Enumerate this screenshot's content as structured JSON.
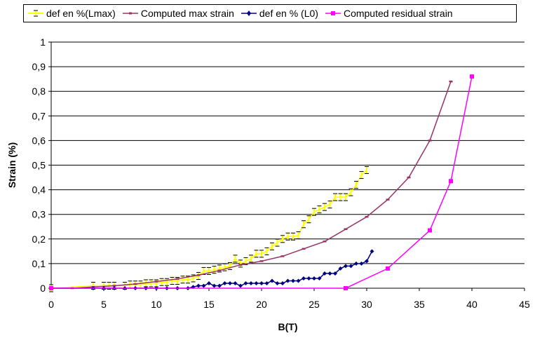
{
  "chart_data": {
    "type": "line",
    "xlabel": "B(T)",
    "ylabel": "Strain (%)",
    "xlim": [
      0,
      45
    ],
    "ylim": [
      0,
      1
    ],
    "x_ticks": [
      "0",
      "5",
      "10",
      "15",
      "20",
      "25",
      "30",
      "35",
      "40",
      "45"
    ],
    "y_ticks": [
      "0",
      "0,1",
      "0,2",
      "0,3",
      "0,4",
      "0,5",
      "0,6",
      "0,7",
      "0,8",
      "0,9",
      "1"
    ],
    "grid": "horizontal",
    "legend_position": "top",
    "series": [
      {
        "name": "def en %(Lmax)",
        "color": "#ffff00",
        "marker": "error-bar",
        "points": [
          [
            0,
            0
          ],
          [
            4,
            0.01
          ],
          [
            5,
            0.01
          ],
          [
            5.5,
            0.01
          ],
          [
            6,
            0.01
          ],
          [
            7,
            0.01
          ],
          [
            7.5,
            0.015
          ],
          [
            8,
            0.015
          ],
          [
            8.5,
            0.015
          ],
          [
            9,
            0.02
          ],
          [
            9.5,
            0.02
          ],
          [
            10,
            0.02
          ],
          [
            10.5,
            0.025
          ],
          [
            11,
            0.025
          ],
          [
            11.5,
            0.03
          ],
          [
            12,
            0.03
          ],
          [
            12.5,
            0.035
          ],
          [
            13,
            0.035
          ],
          [
            13.5,
            0.04
          ],
          [
            14,
            0.05
          ],
          [
            14.5,
            0.07
          ],
          [
            15,
            0.07
          ],
          [
            15.5,
            0.075
          ],
          [
            16,
            0.08
          ],
          [
            16.5,
            0.085
          ],
          [
            17,
            0.09
          ],
          [
            17.5,
            0.12
          ],
          [
            18,
            0.1
          ],
          [
            18.5,
            0.11
          ],
          [
            19,
            0.12
          ],
          [
            19.5,
            0.14
          ],
          [
            20,
            0.14
          ],
          [
            20.5,
            0.15
          ],
          [
            21,
            0.17
          ],
          [
            21.5,
            0.185
          ],
          [
            22,
            0.2
          ],
          [
            22.5,
            0.21
          ],
          [
            23,
            0.21
          ],
          [
            23.5,
            0.215
          ],
          [
            24,
            0.26
          ],
          [
            24.5,
            0.28
          ],
          [
            25,
            0.31
          ],
          [
            25.5,
            0.32
          ],
          [
            26,
            0.33
          ],
          [
            26.5,
            0.34
          ],
          [
            27,
            0.37
          ],
          [
            27.5,
            0.37
          ],
          [
            28,
            0.37
          ],
          [
            28.5,
            0.39
          ],
          [
            29,
            0.42
          ],
          [
            29.5,
            0.46
          ],
          [
            30,
            0.48
          ]
        ]
      },
      {
        "name": "Computed max strain",
        "color": "#993366",
        "marker": "dash",
        "points": [
          [
            0,
            0
          ],
          [
            2,
            0
          ],
          [
            4,
            0.005
          ],
          [
            6,
            0.01
          ],
          [
            8,
            0.017
          ],
          [
            10,
            0.027
          ],
          [
            12,
            0.038
          ],
          [
            14,
            0.053
          ],
          [
            16,
            0.072
          ],
          [
            18,
            0.095
          ],
          [
            20,
            0.11
          ],
          [
            22,
            0.13
          ],
          [
            24,
            0.16
          ],
          [
            26,
            0.19
          ],
          [
            28,
            0.24
          ],
          [
            30,
            0.29
          ],
          [
            32,
            0.36
          ],
          [
            34,
            0.45
          ],
          [
            36,
            0.6
          ],
          [
            38,
            0.84
          ]
        ]
      },
      {
        "name": "def en % (L0)",
        "color": "#000080",
        "marker": "diamond",
        "points": [
          [
            0,
            0
          ],
          [
            4,
            0
          ],
          [
            5,
            0
          ],
          [
            6,
            0
          ],
          [
            7,
            0
          ],
          [
            8,
            0
          ],
          [
            9,
            0
          ],
          [
            10,
            0
          ],
          [
            11,
            0
          ],
          [
            12,
            0
          ],
          [
            13,
            0
          ],
          [
            13.5,
            0.005
          ],
          [
            14,
            0.01
          ],
          [
            14.5,
            0.01
          ],
          [
            15,
            0.02
          ],
          [
            15.5,
            0.01
          ],
          [
            16,
            0.01
          ],
          [
            16.5,
            0.02
          ],
          [
            17,
            0.02
          ],
          [
            17.5,
            0.02
          ],
          [
            18,
            0.01
          ],
          [
            18.5,
            0.02
          ],
          [
            19,
            0.02
          ],
          [
            19.5,
            0.02
          ],
          [
            20,
            0.02
          ],
          [
            20.5,
            0.02
          ],
          [
            21,
            0.03
          ],
          [
            21.5,
            0.02
          ],
          [
            22,
            0.02
          ],
          [
            22.5,
            0.03
          ],
          [
            23,
            0.03
          ],
          [
            23.5,
            0.03
          ],
          [
            24,
            0.04
          ],
          [
            24.5,
            0.04
          ],
          [
            25,
            0.04
          ],
          [
            25.5,
            0.04
          ],
          [
            26,
            0.06
          ],
          [
            26.5,
            0.06
          ],
          [
            27,
            0.06
          ],
          [
            27.5,
            0.08
          ],
          [
            28,
            0.09
          ],
          [
            28.5,
            0.09
          ],
          [
            29,
            0.1
          ],
          [
            29.5,
            0.1
          ],
          [
            30,
            0.11
          ],
          [
            30.5,
            0.15
          ]
        ]
      },
      {
        "name": "Computed residual strain",
        "color": "#ff00ff",
        "marker": "square",
        "points": [
          [
            0,
            0
          ],
          [
            28,
            0
          ],
          [
            32,
            0.08
          ],
          [
            36,
            0.235
          ],
          [
            38,
            0.435
          ],
          [
            40,
            0.86
          ]
        ]
      }
    ]
  }
}
